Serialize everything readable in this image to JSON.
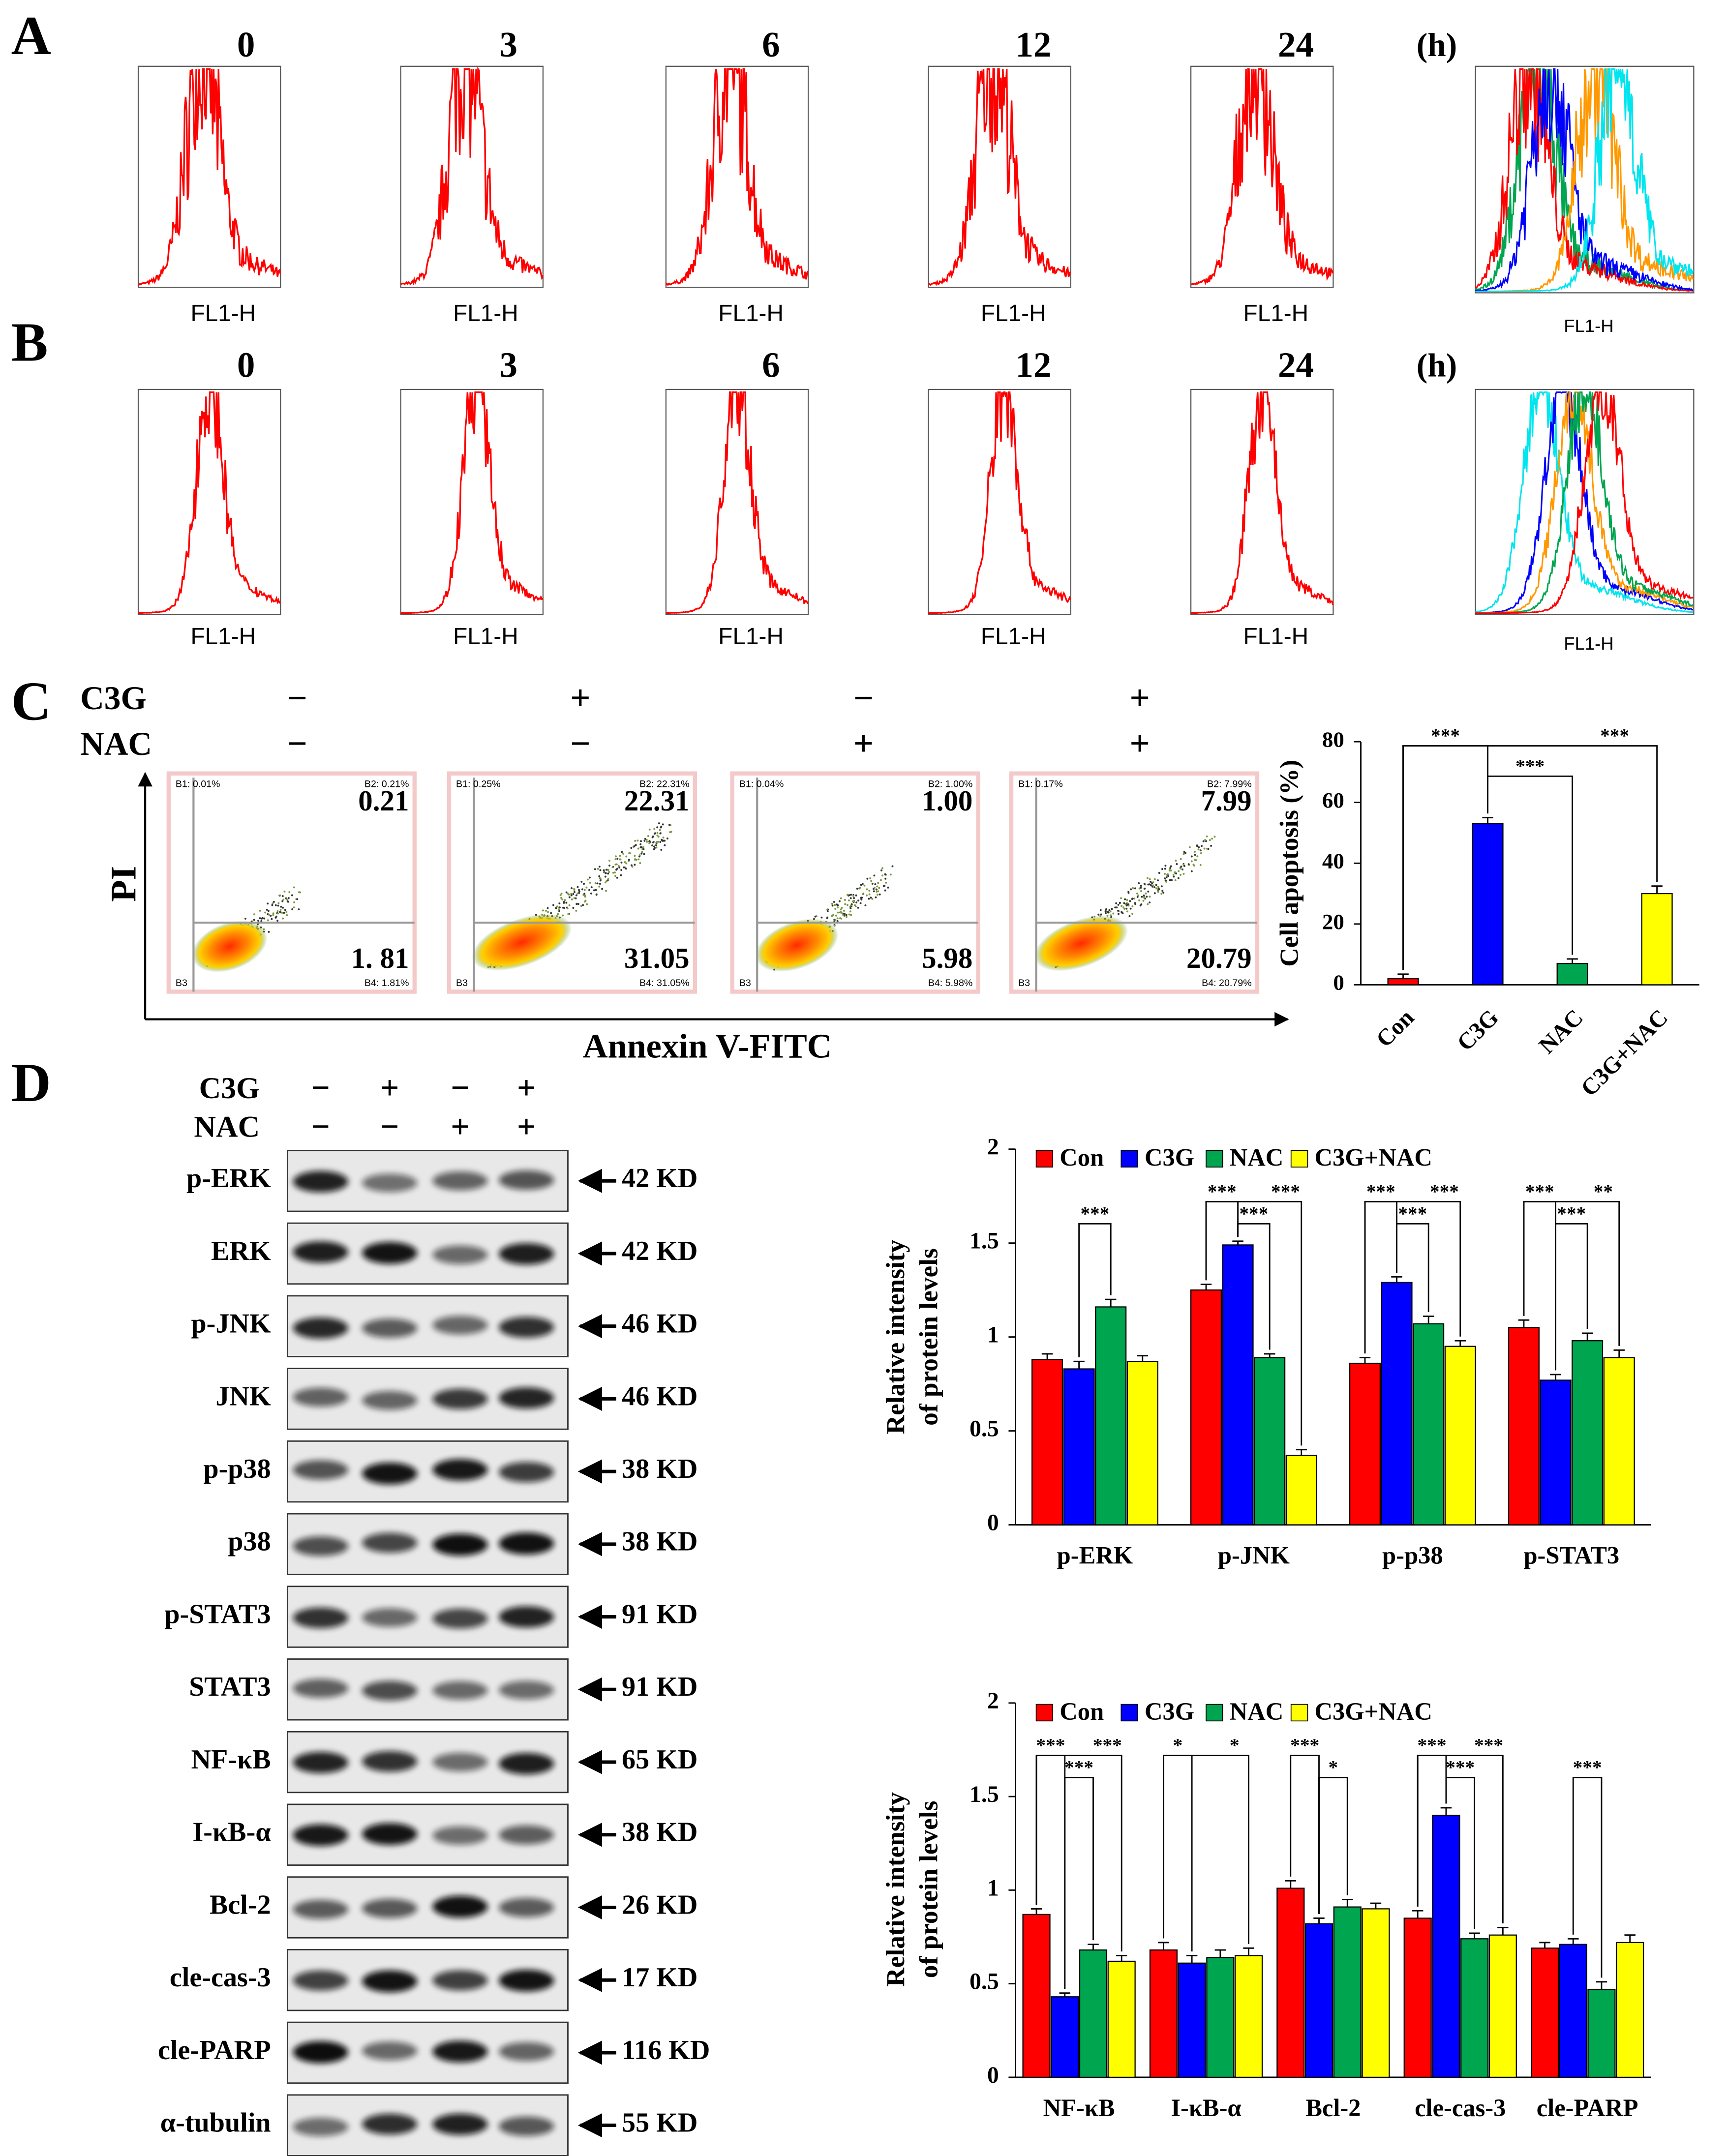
{
  "panel_labels": [
    "A",
    "B",
    "C",
    "D"
  ],
  "flow": {
    "timepoints": [
      "0",
      "3",
      "6",
      "12",
      "24"
    ],
    "time_unit": "(h)",
    "xlabel": "FL1-H"
  },
  "apoptosis_scatter": {
    "treatments": [
      {
        "name": "C3G",
        "signs": [
          "−",
          "+",
          "−",
          "+"
        ]
      },
      {
        "name": "NAC",
        "signs": [
          "−",
          "−",
          "+",
          "+"
        ]
      }
    ],
    "ylabel": "PI",
    "xlabel": "Annexin V-FITC",
    "plots": [
      {
        "b1": "B1: 0.01%",
        "b2": "B2: 0.21%",
        "b3": "B3",
        "b4": "B4: 1.81%",
        "upper": "0.21",
        "lower": "1. 81"
      },
      {
        "b1": "B1: 0.25%",
        "b2": "B2: 22.31%",
        "b3": "B3",
        "b4": "B4: 31.05%",
        "upper": "22.31",
        "lower": "31.05"
      },
      {
        "b1": "B1: 0.04%",
        "b2": "B2: 1.00%",
        "b3": "B3",
        "b4": "B4: 5.98%",
        "upper": "1.00",
        "lower": "5.98"
      },
      {
        "b1": "B1: 0.17%",
        "b2": "B2: 7.99%",
        "b3": "B3",
        "b4": "B4: 20.79%",
        "upper": "7.99",
        "lower": "20.79"
      }
    ]
  },
  "western_blot": {
    "treatments": [
      {
        "name": "C3G",
        "signs": [
          "−",
          "+",
          "−",
          "+"
        ]
      },
      {
        "name": "NAC",
        "signs": [
          "−",
          "−",
          "+",
          "+"
        ]
      }
    ],
    "rows": [
      {
        "protein": "p-ERK",
        "size": "42 KD"
      },
      {
        "protein": "ERK",
        "size": "42 KD"
      },
      {
        "protein": "p-JNK",
        "size": "46 KD"
      },
      {
        "protein": "JNK",
        "size": "46 KD"
      },
      {
        "protein": "p-p38",
        "size": "38 KD"
      },
      {
        "protein": "p38",
        "size": "38 KD"
      },
      {
        "protein": "p-STAT3",
        "size": "91 KD"
      },
      {
        "protein": "STAT3",
        "size": "91 KD"
      },
      {
        "protein": "NF-κB",
        "size": "65 KD"
      },
      {
        "protein": "I-κB-α",
        "size": "38 KD"
      },
      {
        "protein": "Bcl-2",
        "size": "26 KD"
      },
      {
        "protein": "cle-cas-3",
        "size": "17 KD"
      },
      {
        "protein": "cle-PARP",
        "size": "116 KD"
      },
      {
        "protein": "α-tubulin",
        "size": "55 KD"
      }
    ]
  },
  "chart_data": [
    {
      "type": "bar",
      "ylabel": "Cell apoptosis (%)",
      "categories": [
        "Con",
        "C3G",
        "NAC",
        "C3G+NAC"
      ],
      "values": [
        2,
        53,
        7,
        30
      ],
      "errors": [
        1.5,
        2,
        1.5,
        2.5
      ],
      "colors": [
        "#ff0000",
        "#0000ff",
        "#00a550",
        "#ffff00"
      ],
      "ylim": [
        0,
        80
      ],
      "yticks": [
        0,
        20,
        40,
        60,
        80
      ],
      "comparisons": [
        {
          "category": 0,
          "from": 0,
          "to": 1,
          "label": "***"
        },
        {
          "category": 0,
          "from": 0,
          "to": 3,
          "label": "***"
        },
        {
          "category": 0,
          "from": 1,
          "to": 2,
          "label": "***"
        }
      ]
    },
    {
      "type": "grouped_bar",
      "ylabel": [
        "Relative intensity",
        "of protein levels"
      ],
      "categories": [
        "p-ERK",
        "p-JNK",
        "p-p38",
        "p-STAT3"
      ],
      "series": [
        {
          "name": "Con",
          "color": "#ff0000",
          "values": [
            0.88,
            1.25,
            0.86,
            1.05
          ],
          "errors": [
            0.03,
            0.03,
            0.03,
            0.04
          ]
        },
        {
          "name": "C3G",
          "color": "#0000ff",
          "values": [
            0.83,
            1.49,
            1.29,
            0.77
          ],
          "errors": [
            0.04,
            0.02,
            0.03,
            0.03
          ]
        },
        {
          "name": "NAC",
          "color": "#00a550",
          "values": [
            1.16,
            0.89,
            1.07,
            0.98
          ],
          "errors": [
            0.04,
            0.02,
            0.04,
            0.04
          ]
        },
        {
          "name": "C3G+NAC",
          "color": "#ffff00",
          "values": [
            0.87,
            0.37,
            0.95,
            0.89
          ],
          "errors": [
            0.03,
            0.03,
            0.03,
            0.04
          ]
        }
      ],
      "ylim": [
        0,
        2
      ],
      "yticks": [
        0,
        0.5,
        1,
        1.5,
        2
      ],
      "legend": "top",
      "comparisons": [
        {
          "category": 0,
          "from": 1,
          "to": 2,
          "label": "***"
        },
        {
          "category": 1,
          "from": 0,
          "to": 1,
          "label": "***"
        },
        {
          "category": 1,
          "from": 0,
          "to": 3,
          "label": "***"
        },
        {
          "category": 1,
          "from": 1,
          "to": 2,
          "label": "***"
        },
        {
          "category": 2,
          "from": 0,
          "to": 1,
          "label": "***"
        },
        {
          "category": 2,
          "from": 0,
          "to": 3,
          "label": "***"
        },
        {
          "category": 2,
          "from": 1,
          "to": 2,
          "label": "***"
        },
        {
          "category": 3,
          "from": 0,
          "to": 1,
          "label": "***"
        },
        {
          "category": 3,
          "from": 0,
          "to": 3,
          "label": "**"
        },
        {
          "category": 3,
          "from": 1,
          "to": 2,
          "label": "***"
        }
      ]
    },
    {
      "type": "grouped_bar",
      "ylabel": [
        "Relative intensity",
        "of protein levels"
      ],
      "categories": [
        "NF-κB",
        "I-κB-α",
        "Bcl-2",
        "cle-cas-3",
        "cle-PARP"
      ],
      "series": [
        {
          "name": "Con",
          "color": "#ff0000",
          "values": [
            0.87,
            0.68,
            1.01,
            0.85,
            0.69
          ],
          "errors": [
            0.03,
            0.04,
            0.04,
            0.04,
            0.03
          ]
        },
        {
          "name": "C3G",
          "color": "#0000ff",
          "values": [
            0.43,
            0.61,
            0.82,
            1.4,
            0.71
          ],
          "errors": [
            0.02,
            0.04,
            0.03,
            0.04,
            0.03
          ]
        },
        {
          "name": "NAC",
          "color": "#00a550",
          "values": [
            0.68,
            0.64,
            0.91,
            0.74,
            0.47
          ],
          "errors": [
            0.03,
            0.04,
            0.04,
            0.03,
            0.04
          ]
        },
        {
          "name": "C3G+NAC",
          "color": "#ffff00",
          "values": [
            0.62,
            0.65,
            0.9,
            0.76,
            0.72
          ],
          "errors": [
            0.03,
            0.04,
            0.03,
            0.04,
            0.04
          ]
        }
      ],
      "ylim": [
        0,
        2
      ],
      "yticks": [
        0,
        0.5,
        1,
        1.5,
        2
      ],
      "legend": "top",
      "comparisons": [
        {
          "category": 0,
          "from": 0,
          "to": 1,
          "label": "***"
        },
        {
          "category": 0,
          "from": 0,
          "to": 3,
          "label": "***"
        },
        {
          "category": 0,
          "from": 1,
          "to": 2,
          "label": "***"
        },
        {
          "category": 1,
          "from": 0,
          "to": 1,
          "label": "*"
        },
        {
          "category": 1,
          "from": 0,
          "to": 3,
          "label": "*"
        },
        {
          "category": 2,
          "from": 0,
          "to": 1,
          "label": "***"
        },
        {
          "category": 2,
          "from": 1,
          "to": 2,
          "label": "*"
        },
        {
          "category": 3,
          "from": 0,
          "to": 1,
          "label": "***"
        },
        {
          "category": 3,
          "from": 0,
          "to": 3,
          "label": "***"
        },
        {
          "category": 3,
          "from": 1,
          "to": 2,
          "label": "***"
        },
        {
          "category": 4,
          "from": 1,
          "to": 2,
          "label": "***"
        }
      ]
    }
  ]
}
